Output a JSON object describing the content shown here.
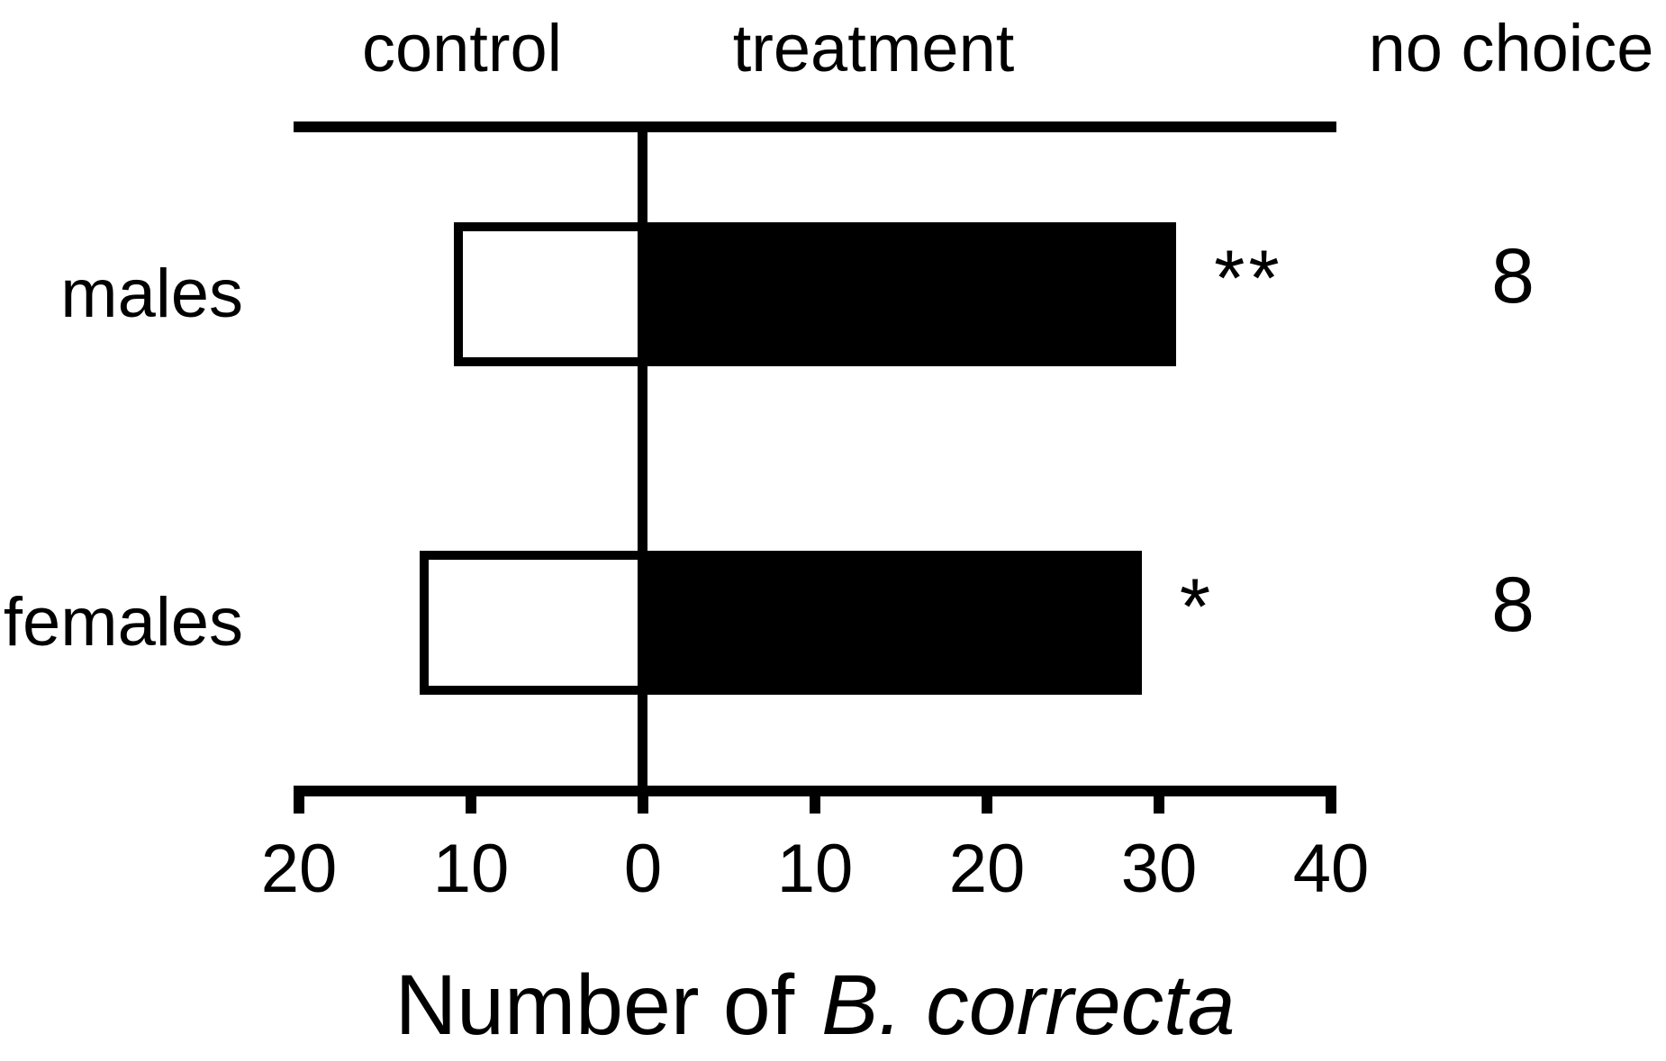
{
  "figure": {
    "background": "#ffffff",
    "ink": "#000000"
  },
  "chart_data": {
    "type": "bar",
    "orientation": "horizontal-diverging",
    "categories": [
      "males",
      "females"
    ],
    "series": [
      {
        "name": "control",
        "values": [
          11,
          13
        ],
        "direction": "left",
        "fill": "#ffffff",
        "outline": "#000000"
      },
      {
        "name": "treatment",
        "values": [
          31,
          29
        ],
        "direction": "right",
        "fill": "#000000"
      }
    ],
    "significance": [
      "**",
      "*"
    ],
    "no_choice": [
      8,
      8
    ],
    "column_headers": {
      "control": "control",
      "treatment": "treatment",
      "no_choice": "no choice"
    },
    "x_axis": {
      "label_prefix": "Number of",
      "label_species": "B. correcta",
      "tick_values": [
        -20,
        -10,
        0,
        10,
        20,
        30,
        40
      ],
      "tick_labels": [
        "20",
        "10",
        "0",
        "10",
        "20",
        "30",
        "40"
      ],
      "range": [
        -20,
        40
      ],
      "grid": false
    },
    "legend_position": "none"
  }
}
